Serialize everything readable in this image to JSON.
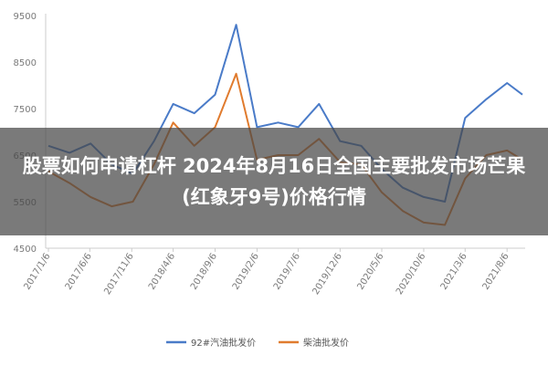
{
  "banner": {
    "title": "股票如何申请杠杆 2024年8月16日全国主要批发市场芒果(红象牙9号)价格行情"
  },
  "chart_data": {
    "type": "line",
    "x": [
      "2017/1/6",
      "2017/3/24",
      "2017/6/9",
      "2017/8/25",
      "2017/11/10",
      "2018/1/26",
      "2018/4/6",
      "2018/6/22",
      "2018/9/6",
      "2018/11/22",
      "2019/2/6",
      "2019/4/24",
      "2019/7/6",
      "2019/9/20",
      "2019/12/6",
      "2020/2/21",
      "2020/5/6",
      "2020/7/22",
      "2020/10/6",
      "2020/12/22",
      "2021/3/6",
      "2021/5/22",
      "2021/8/6",
      "2021/10/1"
    ],
    "x_tick_labels": [
      "2017/1/6",
      "2017/6/6",
      "2017/11/6",
      "2018/4/6",
      "2018/9/6",
      "2019/2/6",
      "2019/7/6",
      "2019/12/6",
      "2020/5/6",
      "2020/10/6",
      "2021/3/6",
      "2021/8/6"
    ],
    "y_tick_labels": [
      "9500",
      "8500",
      "7500",
      "6500",
      "5500",
      "4500"
    ],
    "ylim": [
      4500,
      9500
    ],
    "grid": false,
    "legend_position": "bottom",
    "series": [
      {
        "name": "92#汽油批发价",
        "color": "#4a7bc8",
        "values": [
          6700,
          6550,
          6750,
          6300,
          6100,
          6800,
          7600,
          7400,
          7800,
          9300,
          7100,
          7200,
          7100,
          7600,
          6800,
          6700,
          6200,
          5800,
          5600,
          5500,
          7300,
          7700,
          8050,
          7800
        ]
      },
      {
        "name": "柴油批发价",
        "color": "#e07b2e",
        "values": [
          6150,
          5900,
          5600,
          5400,
          5500,
          6300,
          7200,
          6700,
          7100,
          8250,
          6400,
          6500,
          6500,
          6850,
          6350,
          6300,
          5700,
          5300,
          5050,
          5000,
          6000,
          6500,
          6600,
          6400
        ]
      }
    ]
  }
}
